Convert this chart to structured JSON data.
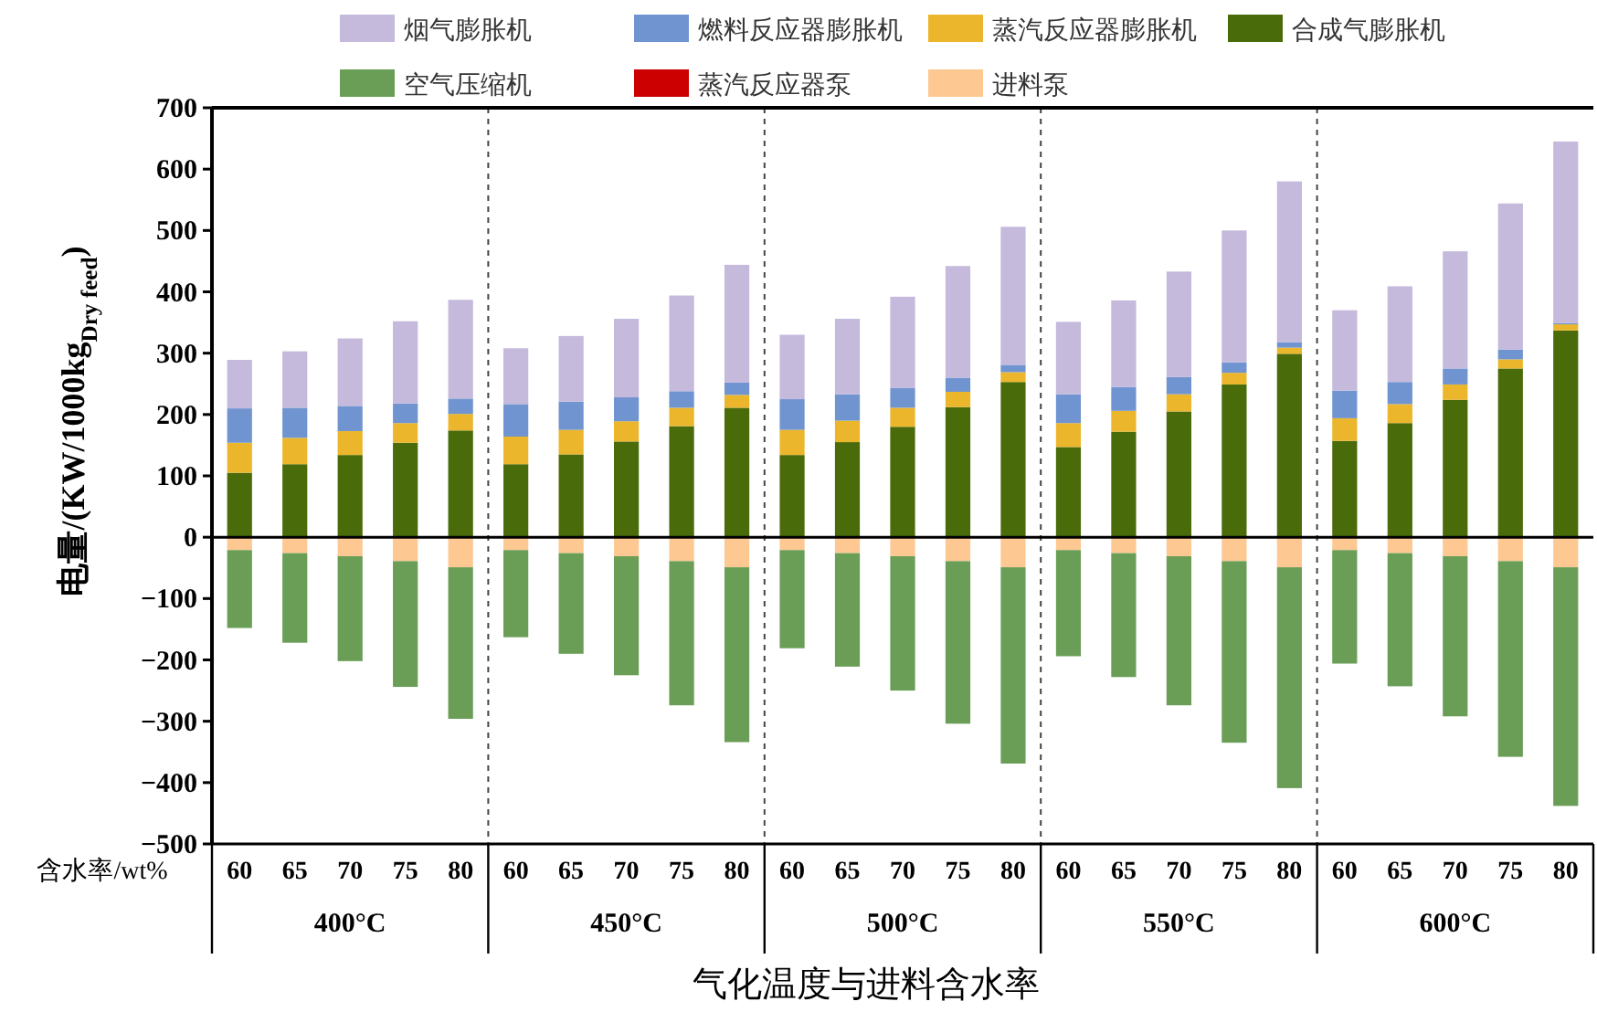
{
  "chart_data": {
    "type": "bar",
    "stacked": true,
    "legend": "top",
    "grid": false,
    "ylabel": "电量/(KW/1000kg$_{Dry feed}$)",
    "xlabel": "气化温度与进料含水率",
    "annotations": [
      "含水率/wt%",
      "400°C",
      "450°C",
      "500°C",
      "550°C",
      "600°C"
    ],
    "categories": [
      "60",
      "65",
      "70",
      "75",
      "80",
      "60",
      "65",
      "70",
      "75",
      "80",
      "60",
      "65",
      "70",
      "75",
      "80",
      "60",
      "65",
      "70",
      "75",
      "80",
      "60",
      "65",
      "70",
      "75",
      "80"
    ],
    "ylim": [
      -500,
      700
    ],
    "yticks": [
      {
        "value": -500,
        "label": "−500"
      },
      {
        "value": -400,
        "label": "−400"
      },
      {
        "value": -300,
        "label": "−300"
      },
      {
        "value": -200,
        "label": "−200"
      },
      {
        "value": -100,
        "label": "−100"
      },
      0,
      100,
      200,
      300,
      400,
      500,
      600,
      700
    ],
    "series": [
      {
        "name": "合成气膨胀机",
        "color": "#4a6b0a",
        "values": [
          105,
          119,
          134,
          154,
          174,
          119,
          135,
          156,
          181,
          211,
          134,
          155,
          180,
          212,
          253,
          147,
          172,
          205,
          249,
          299,
          157,
          186,
          224,
          275,
          337
        ]
      },
      {
        "name": "蒸汽反应器膨胀机",
        "color": "#ebb62c",
        "values": [
          49,
          43,
          39,
          32,
          27,
          45,
          40,
          33,
          30,
          21,
          41,
          35,
          31,
          25,
          16,
          39,
          34,
          28,
          19,
          10,
          37,
          31,
          25,
          15,
          10
        ]
      },
      {
        "name": "燃料反应器膨胀机",
        "color": "#7094d0",
        "values": [
          56,
          49,
          41,
          32,
          25,
          53,
          46,
          39,
          27,
          20,
          50,
          43,
          32,
          23,
          12,
          47,
          39,
          28,
          17,
          9,
          45,
          36,
          26,
          16,
          2
        ]
      },
      {
        "name": "烟气膨胀机",
        "color": "#c5b9dc",
        "values": [
          79,
          92,
          110,
          134,
          161,
          91,
          107,
          128,
          156,
          192,
          105,
          123,
          149,
          182,
          225,
          118,
          141,
          172,
          215,
          262,
          131,
          156,
          191,
          238,
          296
        ]
      },
      {
        "name": "进料泵",
        "color": "#fdc891",
        "values": [
          -21,
          -26,
          -31,
          -39,
          -49,
          -21,
          -26,
          -31,
          -39,
          -49,
          -21,
          -26,
          -31,
          -39,
          -49,
          -21,
          -26,
          -31,
          -39,
          -49,
          -21,
          -26,
          -31,
          -39,
          -49
        ]
      },
      {
        "name": "蒸汽反应器泵",
        "color": "#cc0000",
        "values": [
          0,
          0,
          0,
          0,
          0,
          0,
          0,
          0,
          0,
          0,
          0,
          0,
          0,
          0,
          0,
          0,
          0,
          0,
          0,
          0,
          0,
          0,
          0,
          0,
          0
        ]
      },
      {
        "name": "空气压缩机",
        "color": "#6a9e57",
        "values": [
          -127,
          -146,
          -171,
          -205,
          -247,
          -142,
          -164,
          -194,
          -235,
          -285,
          -160,
          -185,
          -219,
          -265,
          -320,
          -173,
          -202,
          -243,
          -296,
          -360,
          -185,
          -217,
          -261,
          -319,
          -389
        ]
      }
    ]
  }
}
